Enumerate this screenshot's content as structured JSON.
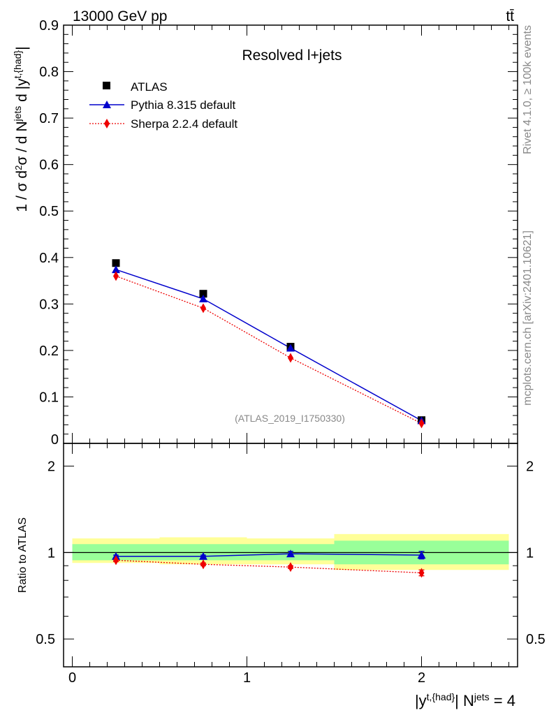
{
  "header": {
    "energy_label": "13000 GeV pp",
    "process_label": "tt̄"
  },
  "side_text": {
    "rivet": "Rivet 4.1.0, ≥ 100k events",
    "mcplots": "mcplots.cern.ch [arXiv:2401.10621]"
  },
  "colors": {
    "atlas": "#000000",
    "pythia": "#0000cc",
    "sherpa": "#ee0000",
    "band_inner": "#99ff99",
    "band_outer": "#ffff99"
  },
  "chart_data": [
    {
      "type": "scatter",
      "panel": "main",
      "title": "Resolved l+jets",
      "watermark": "(ATLAS_2019_I1750330)",
      "ylabel": "1 / σ d²σ / d N^{jets} d |y^{t,{had}}|",
      "ylim": [
        0,
        0.9
      ],
      "xlim": [
        -0.05,
        2.55
      ],
      "yticks": [
        "0",
        "0.1",
        "0.2",
        "0.3",
        "0.4",
        "0.5",
        "0.6",
        "0.7",
        "0.8",
        "0.9"
      ],
      "series": [
        {
          "name": "ATLAS",
          "marker": "square",
          "x": [
            0.25,
            0.75,
            1.25,
            2.0
          ],
          "values": [
            0.388,
            0.322,
            0.208,
            0.05
          ]
        },
        {
          "name": "Pythia 8.315 default",
          "marker": "triangle",
          "line": "solid",
          "x": [
            0.25,
            0.75,
            1.25,
            2.0
          ],
          "values": [
            0.374,
            0.311,
            0.205,
            0.049
          ]
        },
        {
          "name": "Sherpa 2.2.4 default",
          "marker": "diamond",
          "line": "dotted",
          "x": [
            0.25,
            0.75,
            1.25,
            2.0
          ],
          "values": [
            0.36,
            0.291,
            0.184,
            0.043
          ]
        }
      ],
      "legend": [
        "ATLAS",
        "Pythia 8.315 default",
        "Sherpa 2.2.4 default"
      ]
    },
    {
      "type": "line",
      "panel": "ratio",
      "ylabel": "Ratio to ATLAS",
      "xlabel": "|y^{t,{had}}| N^{jets} = 4",
      "ylim": [
        0.4,
        2.4
      ],
      "yscale": "log",
      "yticks": [
        "0.5",
        "1",
        "2"
      ],
      "xticks": [
        "0",
        "1",
        "2"
      ],
      "bins": [
        [
          0,
          0.5
        ],
        [
          0.5,
          1.0
        ],
        [
          1.0,
          1.5
        ],
        [
          1.5,
          2.5
        ]
      ],
      "band_inner": [
        [
          0.94,
          1.07
        ],
        [
          0.94,
          1.07
        ],
        [
          0.94,
          1.07
        ],
        [
          0.91,
          1.1
        ]
      ],
      "band_outer": [
        [
          0.92,
          1.12
        ],
        [
          0.91,
          1.13
        ],
        [
          0.91,
          1.12
        ],
        [
          0.87,
          1.16
        ]
      ],
      "series": [
        {
          "name": "Pythia 8.315 default",
          "x": [
            0.25,
            0.75,
            1.25,
            2.0
          ],
          "values": [
            0.97,
            0.97,
            0.99,
            0.98
          ],
          "err": [
            0.01,
            0.01,
            0.02,
            0.03
          ]
        },
        {
          "name": "Sherpa 2.2.4 default",
          "x": [
            0.25,
            0.75,
            1.25,
            2.0
          ],
          "values": [
            0.94,
            0.91,
            0.89,
            0.85
          ],
          "err": [
            0.01,
            0.01,
            0.01,
            0.02
          ]
        }
      ]
    }
  ]
}
